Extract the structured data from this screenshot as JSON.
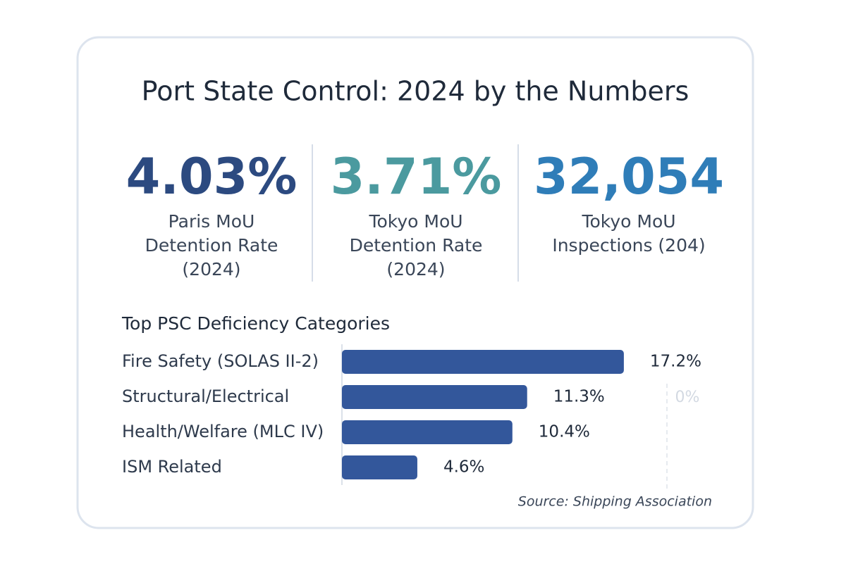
{
  "title": "Port State Control: 2024 by the Numbers",
  "stats": [
    {
      "value": "4.03%",
      "color": "#2c4a80",
      "label_lines": [
        "Paris MoU",
        "Detention Rate",
        "(2024)"
      ]
    },
    {
      "value": "3.71%",
      "color": "#4b9a9f",
      "label_lines": [
        "Tokyo MoU",
        "Detention Rate",
        "(2024)"
      ]
    },
    {
      "value": "32,054",
      "color": "#2f7db8",
      "label_lines": [
        "Tokyo MoU",
        "Inspections (204)"
      ]
    }
  ],
  "chart_data": {
    "type": "bar",
    "orientation": "horizontal",
    "title": "Top PSC Deficiency Categories",
    "categories": [
      "Fire Safety (SOLAS II-2)",
      "Structural/Electrical",
      "Health/Welfare (MLC IV)",
      "ISM Related"
    ],
    "values": [
      17.2,
      11.3,
      10.4,
      4.6
    ],
    "value_labels": [
      "17.2%",
      "11.3%",
      "10.4%",
      "4.6%"
    ],
    "color": "#33579b",
    "xlim": [
      0,
      20
    ],
    "annotation": "0%"
  },
  "source": "Source: Shipping Association"
}
